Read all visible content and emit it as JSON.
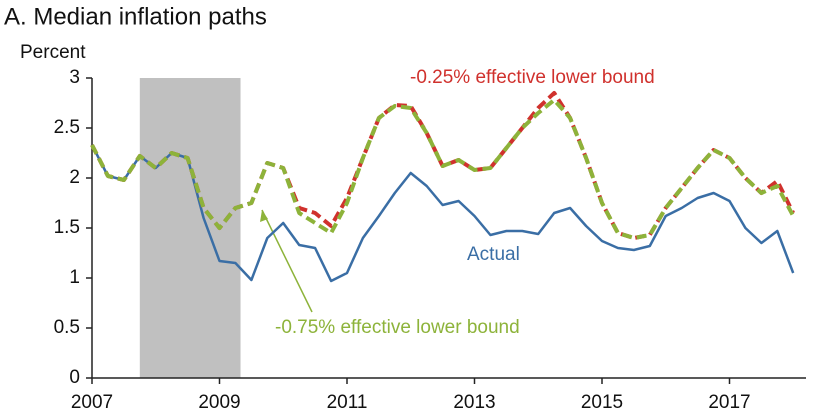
{
  "chart_data": {
    "type": "line",
    "title": "A. Median inflation paths",
    "y_label": "Percent",
    "x": [
      2007,
      2007.25,
      2007.5,
      2007.75,
      2008,
      2008.25,
      2008.5,
      2008.75,
      2009,
      2009.25,
      2009.5,
      2009.75,
      2010,
      2010.25,
      2010.5,
      2010.75,
      2011,
      2011.25,
      2011.5,
      2011.75,
      2012,
      2012.25,
      2012.5,
      2012.75,
      2013,
      2013.25,
      2013.5,
      2013.75,
      2014,
      2014.25,
      2014.5,
      2014.75,
      2015,
      2015.25,
      2015.5,
      2015.75,
      2016,
      2016.25,
      2016.5,
      2016.75,
      2017,
      2017.25,
      2017.5,
      2017.75,
      2018
    ],
    "series": [
      {
        "name": "Actual",
        "color": "#3a6ea5",
        "dashed": false,
        "values": [
          2.33,
          2.02,
          1.98,
          2.22,
          2.1,
          2.25,
          2.2,
          1.6,
          1.17,
          1.15,
          0.98,
          1.4,
          1.55,
          1.33,
          1.3,
          0.97,
          1.05,
          1.4,
          1.62,
          1.85,
          2.05,
          1.92,
          1.73,
          1.77,
          1.62,
          1.43,
          1.47,
          1.47,
          1.44,
          1.65,
          1.7,
          1.52,
          1.37,
          1.3,
          1.28,
          1.32,
          1.62,
          1.7,
          1.8,
          1.85,
          1.77,
          1.5,
          1.35,
          1.47,
          1.05
        ]
      },
      {
        "name": "-0.25% effective lower bound",
        "color": "#d0312d",
        "dashed": true,
        "values": [
          2.33,
          2.02,
          1.98,
          2.22,
          2.1,
          2.25,
          2.2,
          1.7,
          1.5,
          1.7,
          1.75,
          2.15,
          2.1,
          1.7,
          1.65,
          1.52,
          1.8,
          2.2,
          2.6,
          2.73,
          2.72,
          2.45,
          2.12,
          2.18,
          2.08,
          2.1,
          2.3,
          2.5,
          2.7,
          2.85,
          2.6,
          2.2,
          1.75,
          1.45,
          1.4,
          1.43,
          1.7,
          1.9,
          2.1,
          2.28,
          2.2,
          2.0,
          1.85,
          1.97,
          1.65
        ]
      },
      {
        "name": "-0.75% effective lower bound",
        "color": "#8db33a",
        "dashed": true,
        "values": [
          2.33,
          2.02,
          1.98,
          2.22,
          2.1,
          2.25,
          2.2,
          1.7,
          1.5,
          1.7,
          1.75,
          2.15,
          2.1,
          1.65,
          1.55,
          1.45,
          1.75,
          2.2,
          2.6,
          2.72,
          2.7,
          2.45,
          2.12,
          2.18,
          2.08,
          2.1,
          2.3,
          2.5,
          2.65,
          2.78,
          2.6,
          2.2,
          1.75,
          1.45,
          1.4,
          1.43,
          1.7,
          1.9,
          2.1,
          2.28,
          2.2,
          2.0,
          1.85,
          1.92,
          1.62
        ]
      }
    ],
    "shaded_period": [
      2007.75,
      2009.33
    ],
    "shade_color": "#c0c0c0",
    "xlim": [
      2007,
      2018.2
    ],
    "xticks": [
      2007,
      2009,
      2011,
      2013,
      2015,
      2017
    ],
    "ylim": [
      0,
      3
    ],
    "yticks": [
      0,
      0.5,
      1,
      1.5,
      2,
      2.5,
      3
    ],
    "grid": false
  }
}
